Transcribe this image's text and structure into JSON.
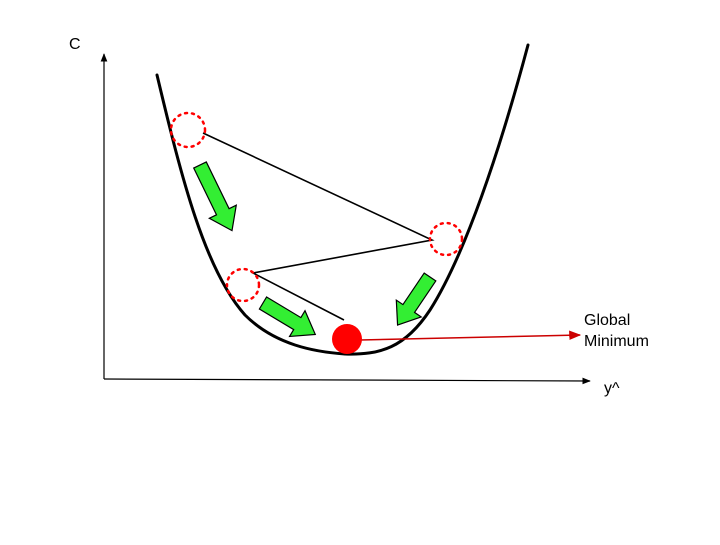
{
  "labels": {
    "y_axis": "C",
    "x_axis": "y^",
    "minimum_line1": "Global",
    "minimum_line2": "Minimum"
  },
  "colors": {
    "curve": "#000000",
    "axes": "#000000",
    "path": "#000000",
    "step_circle": "#ff0000",
    "ball": "#ff0000",
    "arrow_fill": "#33ee33",
    "arrow_stroke": "#000000",
    "pointer_line": "#cc0000"
  },
  "icons": {
    "step_marker": "dotted-circle-icon",
    "direction": "green-arrow-icon",
    "ball": "red-ball-icon"
  }
}
